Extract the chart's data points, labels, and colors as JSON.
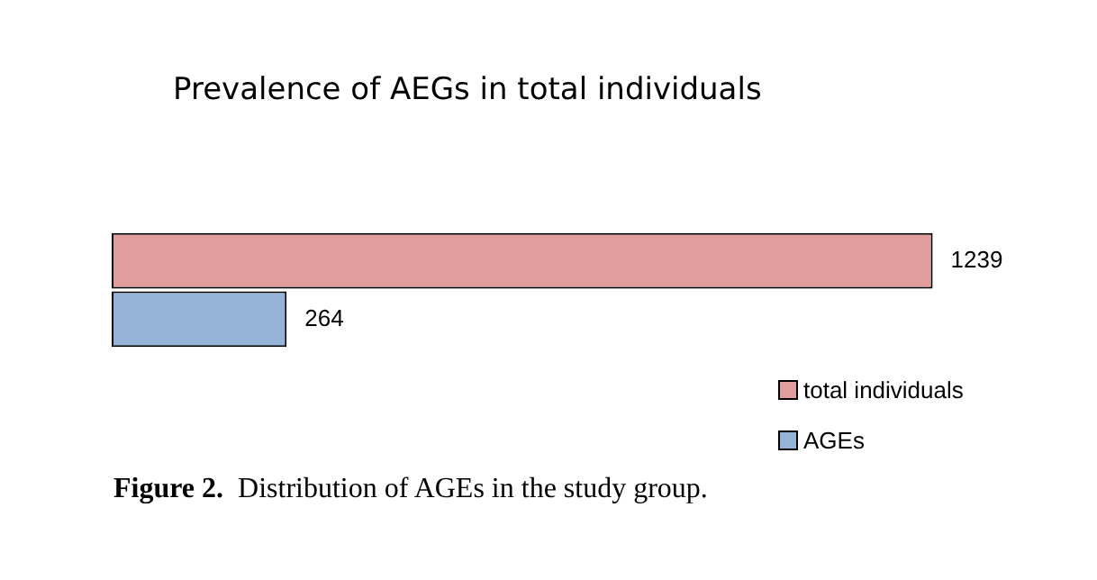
{
  "chart_data": {
    "type": "bar",
    "orientation": "horizontal",
    "title": "Prevalence of AEGs in total individuals",
    "categories": [
      null
    ],
    "series": [
      {
        "name": "total individuals",
        "color": "#e19c9c",
        "values": [
          1239
        ]
      },
      {
        "name": "AGEs",
        "color": "#95b3d7",
        "values": [
          264
        ]
      }
    ],
    "data_labels": true,
    "legend": "bottom right",
    "annotations": [
      "Figure 2.  Distribution of AGEs in the study group."
    ]
  }
}
